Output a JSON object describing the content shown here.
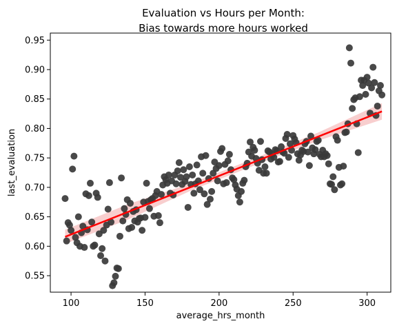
{
  "chart_data": {
    "type": "scatter",
    "title_lines": [
      "Evaluation vs Hours per Month:",
      "Bias towards more hours worked"
    ],
    "xlabel": "average_hrs_month",
    "ylabel": "last_evaluation",
    "xlim": [
      86,
      316
    ],
    "ylim": [
      0.522,
      0.962
    ],
    "xticks": [
      100,
      150,
      200,
      250,
      300
    ],
    "yticks": [
      0.55,
      0.6,
      0.65,
      0.7,
      0.75,
      0.8,
      0.85,
      0.9,
      0.95
    ],
    "grid": false,
    "legend": "none",
    "colors": {
      "points": "#3a3a3a",
      "fit_line": "#ff0000",
      "ci_band": "#f4aeae"
    },
    "regression": {
      "x": [
        96,
        310
      ],
      "y": [
        0.616,
        0.829
      ],
      "ci_halfwidth": [
        0.012,
        0.013,
        0.006,
        0.006,
        0.007,
        0.014
      ]
    },
    "points": [
      [
        96,
        0.681
      ],
      [
        97,
        0.609
      ],
      [
        98,
        0.64
      ],
      [
        99,
        0.636
      ],
      [
        100,
        0.627
      ],
      [
        101,
        0.731
      ],
      [
        102,
        0.753
      ],
      [
        103,
        0.615
      ],
      [
        104,
        0.606
      ],
      [
        105,
        0.65
      ],
      [
        106,
        0.6
      ],
      [
        107,
        0.623
      ],
      [
        108,
        0.634
      ],
      [
        109,
        0.598
      ],
      [
        110,
        0.689
      ],
      [
        111,
        0.628
      ],
      [
        112,
        0.686
      ],
      [
        113,
        0.707
      ],
      [
        114,
        0.641
      ],
      [
        115,
        0.6
      ],
      [
        116,
        0.602
      ],
      [
        117,
        0.69
      ],
      [
        118,
        0.683
      ],
      [
        119,
        0.621
      ],
      [
        120,
        0.584
      ],
      [
        121,
        0.596
      ],
      [
        122,
        0.627
      ],
      [
        123,
        0.575
      ],
      [
        124,
        0.636
      ],
      [
        125,
        0.663
      ],
      [
        126,
        0.708
      ],
      [
        127,
        0.641
      ],
      [
        128,
        0.533
      ],
      [
        129,
        0.538
      ],
      [
        130,
        0.549
      ],
      [
        131,
        0.563
      ],
      [
        132,
        0.562
      ],
      [
        133,
        0.617
      ],
      [
        134,
        0.716
      ],
      [
        135,
        0.643
      ],
      [
        136,
        0.664
      ],
      [
        137,
        0.654
      ],
      [
        138,
        0.679
      ],
      [
        139,
        0.63
      ],
      [
        140,
        0.673
      ],
      [
        141,
        0.632
      ],
      [
        142,
        0.659
      ],
      [
        143,
        0.643
      ],
      [
        144,
        0.662
      ],
      [
        145,
        0.641
      ],
      [
        146,
        0.647
      ],
      [
        147,
        0.648
      ],
      [
        148,
        0.627
      ],
      [
        149,
        0.675
      ],
      [
        150,
        0.649
      ],
      [
        151,
        0.707
      ],
      [
        152,
        0.676
      ],
      [
        153,
        0.664
      ],
      [
        154,
        0.679
      ],
      [
        155,
        0.681
      ],
      [
        156,
        0.651
      ],
      [
        157,
        0.686
      ],
      [
        158,
        0.693
      ],
      [
        159,
        0.652
      ],
      [
        160,
        0.64
      ],
      [
        161,
        0.688
      ],
      [
        162,
        0.704
      ],
      [
        163,
        0.718
      ],
      [
        164,
        0.713
      ],
      [
        165,
        0.707
      ],
      [
        166,
        0.721
      ],
      [
        167,
        0.69
      ],
      [
        168,
        0.711
      ],
      [
        169,
        0.687
      ],
      [
        170,
        0.721
      ],
      [
        171,
        0.706
      ],
      [
        172,
        0.728
      ],
      [
        173,
        0.742
      ],
      [
        174,
        0.717
      ],
      [
        175,
        0.705
      ],
      [
        176,
        0.73
      ],
      [
        177,
        0.71
      ],
      [
        178,
        0.718
      ],
      [
        179,
        0.666
      ],
      [
        180,
        0.735
      ],
      [
        181,
        0.705
      ],
      [
        182,
        0.721
      ],
      [
        183,
        0.69
      ],
      [
        184,
        0.706
      ],
      [
        185,
        0.738
      ],
      [
        186,
        0.711
      ],
      [
        187,
        0.696
      ],
      [
        188,
        0.752
      ],
      [
        189,
        0.724
      ],
      [
        190,
        0.689
      ],
      [
        191,
        0.754
      ],
      [
        192,
        0.671
      ],
      [
        193,
        0.715
      ],
      [
        194,
        0.68
      ],
      [
        195,
        0.693
      ],
      [
        196,
        0.724
      ],
      [
        197,
        0.743
      ],
      [
        198,
        0.732
      ],
      [
        199,
        0.711
      ],
      [
        200,
        0.737
      ],
      [
        201,
        0.761
      ],
      [
        202,
        0.766
      ],
      [
        203,
        0.706
      ],
      [
        204,
        0.739
      ],
      [
        205,
        0.708
      ],
      [
        206,
        0.745
      ],
      [
        207,
        0.756
      ],
      [
        208,
        0.73
      ],
      [
        209,
        0.716
      ],
      [
        210,
        0.713
      ],
      [
        211,
        0.704
      ],
      [
        212,
        0.697
      ],
      [
        213,
        0.686
      ],
      [
        214,
        0.675
      ],
      [
        215,
        0.693
      ],
      [
        216,
        0.707
      ],
      [
        217,
        0.712
      ],
      [
        218,
        0.735
      ],
      [
        219,
        0.741
      ],
      [
        220,
        0.76
      ],
      [
        221,
        0.777
      ],
      [
        222,
        0.753
      ],
      [
        223,
        0.768
      ],
      [
        224,
        0.763
      ],
      [
        225,
        0.749
      ],
      [
        226,
        0.741
      ],
      [
        227,
        0.729
      ],
      [
        228,
        0.778
      ],
      [
        229,
        0.747
      ],
      [
        230,
        0.724
      ],
      [
        231,
        0.735
      ],
      [
        232,
        0.724
      ],
      [
        233,
        0.762
      ],
      [
        234,
        0.76
      ],
      [
        235,
        0.748
      ],
      [
        236,
        0.756
      ],
      [
        237,
        0.751
      ],
      [
        238,
        0.764
      ],
      [
        239,
        0.762
      ],
      [
        240,
        0.743
      ],
      [
        241,
        0.744
      ],
      [
        242,
        0.769
      ],
      [
        243,
        0.76
      ],
      [
        244,
        0.758
      ],
      [
        245,
        0.783
      ],
      [
        246,
        0.79
      ],
      [
        247,
        0.751
      ],
      [
        248,
        0.774
      ],
      [
        249,
        0.763
      ],
      [
        250,
        0.788
      ],
      [
        251,
        0.782
      ],
      [
        252,
        0.776
      ],
      [
        253,
        0.757
      ],
      [
        254,
        0.746
      ],
      [
        255,
        0.755
      ],
      [
        256,
        0.763
      ],
      [
        257,
        0.761
      ],
      [
        258,
        0.774
      ],
      [
        259,
        0.778
      ],
      [
        260,
        0.76
      ],
      [
        261,
        0.737
      ],
      [
        262,
        0.787
      ],
      [
        263,
        0.767
      ],
      [
        264,
        0.757
      ],
      [
        265,
        0.764
      ],
      [
        266,
        0.778
      ],
      [
        267,
        0.78
      ],
      [
        268,
        0.756
      ],
      [
        269,
        0.752
      ],
      [
        270,
        0.763
      ],
      [
        271,
        0.752
      ],
      [
        272,
        0.757
      ],
      [
        273,
        0.754
      ],
      [
        274,
        0.74
      ],
      [
        275,
        0.706
      ],
      [
        276,
        0.705
      ],
      [
        277,
        0.718
      ],
      [
        278,
        0.696
      ],
      [
        279,
        0.786
      ],
      [
        280,
        0.78
      ],
      [
        281,
        0.734
      ],
      [
        282,
        0.704
      ],
      [
        283,
        0.706
      ],
      [
        284,
        0.736
      ],
      [
        285,
        0.793
      ],
      [
        286,
        0.794
      ],
      [
        287,
        0.808
      ],
      [
        288,
        0.937
      ],
      [
        289,
        0.911
      ],
      [
        290,
        0.834
      ],
      [
        291,
        0.849
      ],
      [
        292,
        0.852
      ],
      [
        293,
        0.808
      ],
      [
        294,
        0.759
      ],
      [
        295,
        0.854
      ],
      [
        296,
        0.882
      ],
      [
        297,
        0.873
      ],
      [
        298,
        0.882
      ],
      [
        299,
        0.858
      ],
      [
        300,
        0.887
      ],
      [
        301,
        0.877
      ],
      [
        302,
        0.826
      ],
      [
        303,
        0.869
      ],
      [
        304,
        0.904
      ],
      [
        305,
        0.878
      ],
      [
        306,
        0.822
      ],
      [
        307,
        0.838
      ],
      [
        308,
        0.864
      ],
      [
        309,
        0.873
      ],
      [
        310,
        0.857
      ]
    ]
  }
}
